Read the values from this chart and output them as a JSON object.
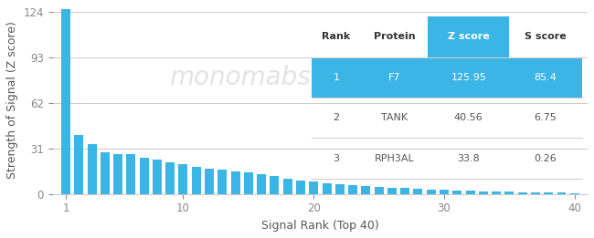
{
  "bar_values": [
    125.95,
    40.56,
    33.8,
    28.5,
    27.5,
    27.0,
    24.5,
    23.5,
    21.5,
    20.5,
    18.5,
    17.5,
    16.5,
    15.5,
    14.5,
    13.5,
    12.0,
    10.5,
    9.5,
    8.5,
    7.5,
    6.8,
    6.2,
    5.6,
    5.0,
    4.5,
    4.0,
    3.6,
    3.2,
    2.9,
    2.6,
    2.3,
    2.0,
    1.8,
    1.6,
    1.4,
    1.2,
    1.0,
    0.8,
    0.6
  ],
  "bar_color": "#3ab5e5",
  "bg_color": "#ffffff",
  "yticks": [
    0,
    31,
    62,
    93,
    124
  ],
  "ylabel": "Strength of Signal (Z score)",
  "xlabel": "Signal Rank (Top 40)",
  "xlim": [
    0,
    41
  ],
  "ylim": [
    0,
    128
  ],
  "table_headers": [
    "Rank",
    "Protein",
    "Z score",
    "S score"
  ],
  "table_rows": [
    [
      "1",
      "F7",
      "125.95",
      "85.4"
    ],
    [
      "2",
      "TANK",
      "40.56",
      "6.75"
    ],
    [
      "3",
      "RPH3AL",
      "33.8",
      "0.26"
    ]
  ],
  "table_highlight_color": "#3ab5e5",
  "table_highlight_text": "#ffffff",
  "table_text_color": "#555555",
  "watermark_text": "monomabs",
  "grid_color": "#cccccc",
  "xticks": [
    1,
    10,
    20,
    30,
    40
  ]
}
